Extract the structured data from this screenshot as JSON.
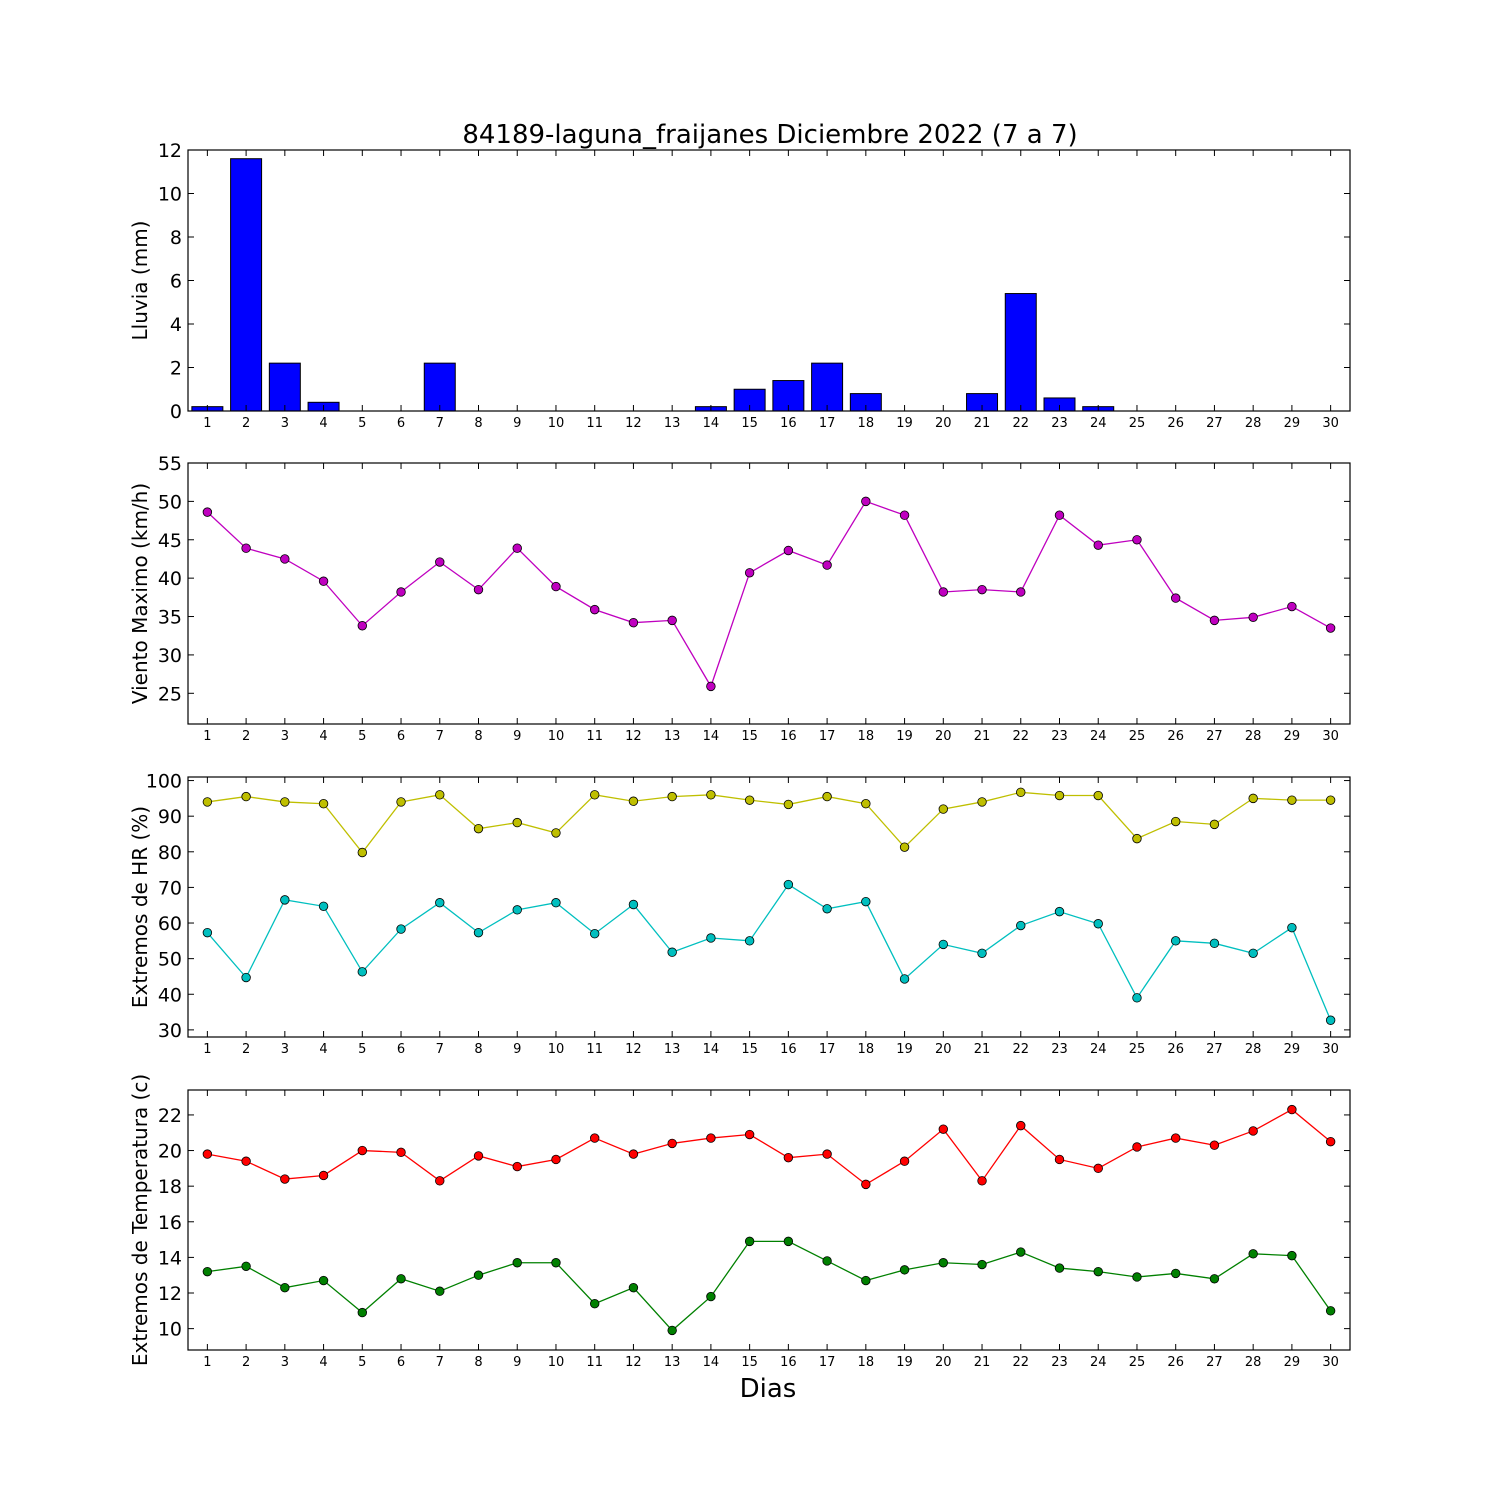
{
  "page_title": "84189-laguna_fraijanes Diciembre 2022  (7 a 7)",
  "xlabel": "Dias",
  "chart_data": [
    {
      "type": "bar",
      "title": "84189-laguna_fraijanes Diciembre 2022  (7 a 7)",
      "ylabel": "Lluvia (mm)",
      "xlabel": "",
      "ylim": [
        0,
        12
      ],
      "yticks": [
        0,
        2,
        4,
        6,
        8,
        10,
        12
      ],
      "categories": [
        1,
        2,
        3,
        4,
        5,
        6,
        7,
        8,
        9,
        10,
        11,
        12,
        13,
        14,
        15,
        16,
        17,
        18,
        19,
        20,
        21,
        22,
        23,
        24,
        25,
        26,
        27,
        28,
        29,
        30
      ],
      "grid": false,
      "series": [
        {
          "color": "#0000ff",
          "values": [
            0.2,
            11.6,
            2.2,
            0.4,
            0,
            0,
            2.2,
            0,
            0,
            0,
            0,
            0,
            0,
            0.2,
            1.0,
            1.4,
            2.2,
            0.8,
            0,
            0,
            0.8,
            5.4,
            0.6,
            0.2,
            0,
            0,
            0,
            0,
            0,
            0
          ]
        }
      ]
    },
    {
      "type": "line",
      "title": "",
      "ylabel": "Viento Maximo (km/h)",
      "xlabel": "",
      "ylim": [
        21,
        55
      ],
      "yticks": [
        25,
        30,
        35,
        40,
        45,
        50,
        55
      ],
      "x": [
        1,
        2,
        3,
        4,
        5,
        6,
        7,
        8,
        9,
        10,
        11,
        12,
        13,
        14,
        15,
        16,
        17,
        18,
        19,
        20,
        21,
        22,
        23,
        24,
        25,
        26,
        27,
        28,
        29,
        30
      ],
      "grid": false,
      "series": [
        {
          "color": "#bf00bf",
          "values": [
            48.6,
            43.9,
            42.5,
            39.6,
            33.8,
            38.2,
            42.1,
            38.5,
            43.9,
            38.9,
            35.9,
            34.2,
            34.5,
            25.9,
            40.7,
            43.6,
            41.7,
            50.0,
            48.2,
            38.2,
            38.5,
            38.2,
            48.2,
            44.3,
            45.0,
            37.4,
            34.5,
            34.9,
            36.3,
            33.5
          ]
        }
      ]
    },
    {
      "type": "line",
      "title": "",
      "ylabel": "Extremos de HR (%)",
      "xlabel": "",
      "ylim": [
        28,
        101
      ],
      "yticks": [
        30,
        40,
        50,
        60,
        70,
        80,
        90,
        100
      ],
      "x": [
        1,
        2,
        3,
        4,
        5,
        6,
        7,
        8,
        9,
        10,
        11,
        12,
        13,
        14,
        15,
        16,
        17,
        18,
        19,
        20,
        21,
        22,
        23,
        24,
        25,
        26,
        27,
        28,
        29,
        30
      ],
      "grid": false,
      "series": [
        {
          "color": "#bfbf00",
          "values": [
            94,
            95.5,
            94,
            93.5,
            79.8,
            94,
            96,
            86.5,
            88.2,
            85.3,
            96,
            94.2,
            95.5,
            96,
            94.5,
            93.3,
            95.5,
            93.5,
            81.3,
            92,
            94,
            96.7,
            95.8,
            95.8,
            83.7,
            88.5,
            87.7,
            95,
            94.5,
            94.5
          ]
        },
        {
          "color": "#00bfbf",
          "values": [
            57.3,
            44.7,
            66.5,
            64.7,
            46.3,
            58.3,
            65.7,
            57.3,
            63.7,
            65.7,
            57,
            65.2,
            51.8,
            55.8,
            55,
            70.8,
            64,
            66,
            44.3,
            54,
            51.5,
            59.3,
            63.2,
            59.8,
            39,
            55,
            54.3,
            51.5,
            58.7,
            32.7
          ]
        }
      ]
    },
    {
      "type": "line",
      "title": "",
      "ylabel": "Extremos de Temperatura (c)",
      "xlabel": "Dias",
      "ylim": [
        8.8,
        23.4
      ],
      "yticks": [
        10,
        12,
        14,
        16,
        18,
        20,
        22
      ],
      "x": [
        1,
        2,
        3,
        4,
        5,
        6,
        7,
        8,
        9,
        10,
        11,
        12,
        13,
        14,
        15,
        16,
        17,
        18,
        19,
        20,
        21,
        22,
        23,
        24,
        25,
        26,
        27,
        28,
        29,
        30
      ],
      "grid": false,
      "series": [
        {
          "color": "#ff0000",
          "values": [
            19.8,
            19.4,
            18.4,
            18.6,
            20.0,
            19.9,
            18.3,
            19.7,
            19.1,
            19.5,
            20.7,
            19.8,
            20.4,
            20.7,
            20.9,
            19.6,
            19.8,
            18.1,
            19.4,
            21.2,
            18.3,
            21.4,
            19.5,
            19.0,
            20.2,
            20.7,
            20.3,
            21.1,
            22.3,
            20.5
          ]
        },
        {
          "color": "#008000",
          "values": [
            13.2,
            13.5,
            12.3,
            12.7,
            10.9,
            12.8,
            12.1,
            13.0,
            13.7,
            13.7,
            11.4,
            12.3,
            9.9,
            11.8,
            14.9,
            14.9,
            13.8,
            12.7,
            13.3,
            13.7,
            13.6,
            14.3,
            13.4,
            13.2,
            12.9,
            13.1,
            12.8,
            14.2,
            14.1,
            11.0
          ]
        }
      ]
    }
  ]
}
